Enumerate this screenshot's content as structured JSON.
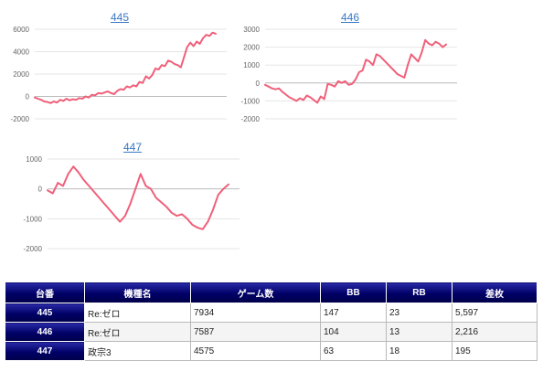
{
  "chart_data": [
    {
      "type": "line",
      "title": "445",
      "yticks": [
        6000,
        4000,
        2000,
        0,
        -2000
      ],
      "ylim": [
        -2000,
        6000
      ],
      "grid": true,
      "color": "#f0607a",
      "series": [
        {
          "values": [
            -100,
            -200,
            -300,
            -450,
            -500,
            -600,
            -450,
            -550,
            -300,
            -400,
            -200,
            -350,
            -250,
            -300,
            -150,
            -200,
            0,
            -100,
            150,
            100,
            300,
            250,
            350,
            450,
            300,
            200,
            500,
            650,
            600,
            900,
            800,
            1000,
            900,
            1300,
            1200,
            1800,
            1600,
            1900,
            2500,
            2400,
            2800,
            2700,
            3200,
            3100,
            2900,
            2800,
            2600,
            3500,
            4400,
            4800,
            4500,
            4900,
            4700,
            5200,
            5500,
            5400,
            5700,
            5600
          ]
        }
      ]
    },
    {
      "type": "line",
      "title": "446",
      "yticks": [
        3000,
        2000,
        1000,
        0,
        -1000,
        -2000
      ],
      "ylim": [
        -2000,
        3000
      ],
      "grid": true,
      "color": "#f0607a",
      "series": [
        {
          "values": [
            -100,
            -200,
            -300,
            -350,
            -300,
            -500,
            -650,
            -800,
            -900,
            -1000,
            -850,
            -950,
            -700,
            -800,
            -950,
            -1100,
            -750,
            -900,
            -50,
            -100,
            -200,
            100,
            0,
            100,
            -100,
            -50,
            200,
            600,
            700,
            1300,
            1200,
            1000,
            1600,
            1500,
            1300,
            1100,
            900,
            700,
            500,
            400,
            300,
            1000,
            1600,
            1400,
            1200,
            1700,
            2400,
            2200,
            2100,
            2300,
            2200,
            2000,
            2150
          ]
        }
      ]
    },
    {
      "type": "line",
      "title": "447",
      "yticks": [
        1000,
        0,
        -1000,
        -2000
      ],
      "ylim": [
        -2000,
        1000
      ],
      "grid": true,
      "color": "#f0607a",
      "series": [
        {
          "values": [
            -50,
            -150,
            200,
            100,
            500,
            750,
            550,
            300,
            100,
            -100,
            -300,
            -500,
            -700,
            -900,
            -1100,
            -900,
            -500,
            0,
            500,
            100,
            0,
            -300,
            -450,
            -600,
            -800,
            -900,
            -850,
            -1000,
            -1200,
            -1300,
            -1350,
            -1100,
            -700,
            -200,
            0,
            150
          ]
        }
      ]
    }
  ],
  "table": {
    "headers": [
      "台番",
      "機種名",
      "ゲーム数",
      "BB",
      "RB",
      "差枚"
    ],
    "rows": [
      {
        "num": "445",
        "model": "Re:ゼロ",
        "games": "7934",
        "bb": "147",
        "rb": "23",
        "diff": "5,597"
      },
      {
        "num": "446",
        "model": "Re:ゼロ",
        "games": "7587",
        "bb": "104",
        "rb": "13",
        "diff": "2,216"
      },
      {
        "num": "447",
        "model": "政宗3",
        "games": "4575",
        "bb": "63",
        "rb": "18",
        "diff": "195"
      }
    ]
  }
}
